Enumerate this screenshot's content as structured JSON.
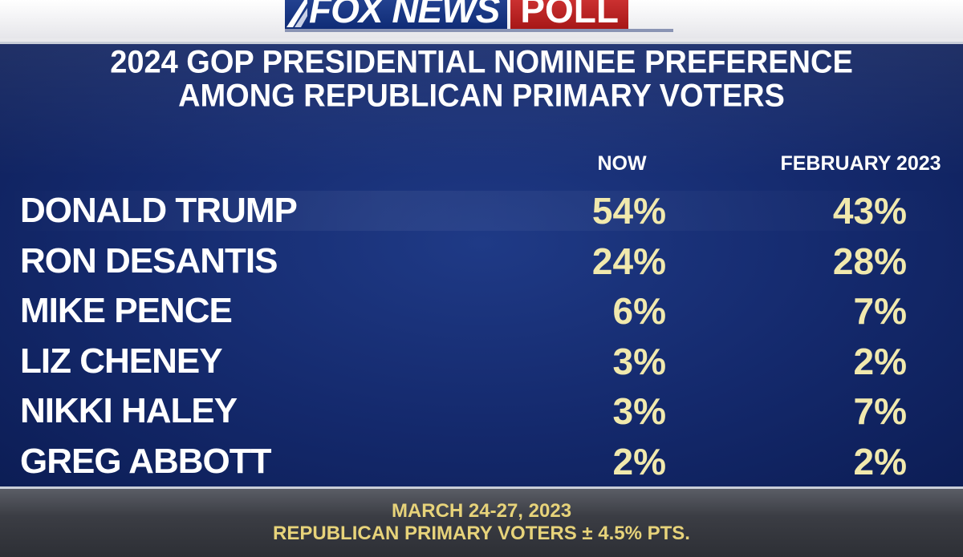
{
  "branding": {
    "logo_main": "FOX NEWS",
    "logo_tag": "POLL"
  },
  "chart_data": {
    "type": "table",
    "title_line1": "2024 GOP PRESIDENTIAL NOMINEE PREFERENCE",
    "title_line2": "AMONG REPUBLICAN PRIMARY VOTERS",
    "columns": [
      "NOW",
      "FEBRUARY 2023"
    ],
    "rows": [
      {
        "name": "DONALD TRUMP",
        "now": "54%",
        "feb": "43%"
      },
      {
        "name": "RON DESANTIS",
        "now": "24%",
        "feb": "28%"
      },
      {
        "name": "MIKE PENCE",
        "now": "6%",
        "feb": "7%"
      },
      {
        "name": "LIZ CHENEY",
        "now": "3%",
        "feb": "2%"
      },
      {
        "name": "NIKKI HALEY",
        "now": "3%",
        "feb": "7%"
      },
      {
        "name": "GREG ABBOTT",
        "now": "2%",
        "feb": "2%"
      }
    ]
  },
  "footer": {
    "line1": "MARCH 24-27, 2023",
    "line2": "REPUBLICAN PRIMARY VOTERS ± 4.5% PTS."
  },
  "colors": {
    "panel_blue": "#14296c",
    "value_yellow": "#f1e9ad",
    "footer_gold": "#e7d37a",
    "logo_red": "#c02020"
  }
}
